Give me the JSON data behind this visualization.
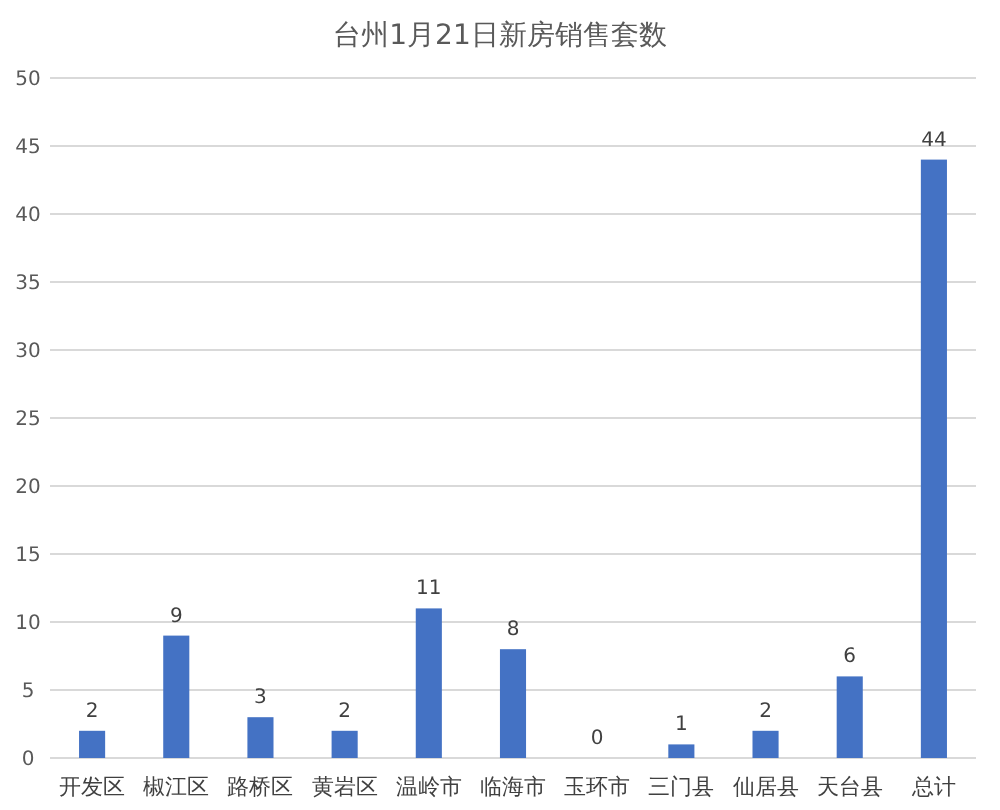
{
  "chart_data": {
    "type": "bar",
    "title": "台州1月21日新房销售套数",
    "categories": [
      "开发区",
      "椒江区",
      "路桥区",
      "黄岩区",
      "温岭市",
      "临海市",
      "玉环市",
      "三门县",
      "仙居县",
      "天台县",
      "总计"
    ],
    "values": [
      2,
      9,
      3,
      2,
      11,
      8,
      0,
      1,
      2,
      6,
      44
    ],
    "color": "#4472c4",
    "ylim": [
      0,
      50
    ],
    "yticks": [
      0,
      5,
      10,
      15,
      20,
      25,
      30,
      35,
      40,
      45,
      50
    ],
    "grid": "y",
    "data_labels": true
  }
}
